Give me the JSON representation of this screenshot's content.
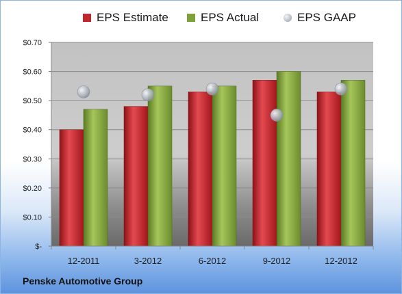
{
  "chart_data": {
    "type": "bar",
    "categories": [
      "12-2011",
      "3-2012",
      "6-2012",
      "9-2012",
      "12-2012"
    ],
    "series": [
      {
        "name": "EPS Estimate",
        "kind": "bar",
        "color": "#c0262d",
        "values": [
          0.4,
          0.48,
          0.53,
          0.57,
          0.53
        ]
      },
      {
        "name": "EPS Actual",
        "kind": "bar",
        "color": "#7fa13a",
        "values": [
          0.47,
          0.55,
          0.55,
          0.6,
          0.57
        ]
      },
      {
        "name": "EPS GAAP",
        "kind": "marker",
        "color": "#b9bec6",
        "values": [
          0.53,
          0.52,
          0.54,
          0.45,
          0.54
        ]
      }
    ],
    "yticks": [
      {
        "value": 0.7,
        "label": "$0.70"
      },
      {
        "value": 0.6,
        "label": "$0.60"
      },
      {
        "value": 0.5,
        "label": "$0.50"
      },
      {
        "value": 0.4,
        "label": "$0.40"
      },
      {
        "value": 0.3,
        "label": "$0.30"
      },
      {
        "value": 0.2,
        "label": "$0.20"
      },
      {
        "value": 0.1,
        "label": "$0.10"
      },
      {
        "value": 0.0,
        "label": "$-"
      }
    ],
    "ylim": [
      0,
      0.7
    ],
    "grid": true,
    "legend_position": "top"
  },
  "footer": {
    "company": "Penske Automotive Group"
  }
}
